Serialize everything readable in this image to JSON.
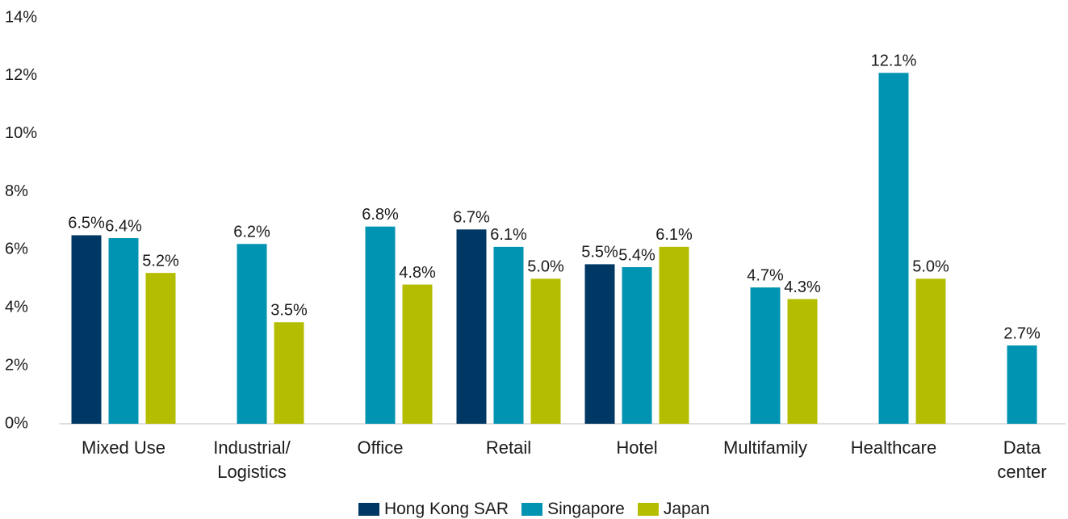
{
  "chart_data": {
    "type": "bar",
    "categories": [
      "Mixed Use",
      "Industrial/\nLogistics",
      "Office",
      "Retail",
      "Hotel",
      "Multifamily",
      "Healthcare",
      "Data\ncenter"
    ],
    "series": [
      {
        "name": "Hong Kong SAR",
        "color": "#003865",
        "values": [
          6.5,
          null,
          null,
          6.7,
          5.5,
          null,
          null,
          null
        ],
        "value_labels": [
          "6.5%",
          null,
          null,
          "6.7%",
          "5.5%",
          null,
          null,
          null
        ]
      },
      {
        "name": "Singapore",
        "color": "#0093b2",
        "values": [
          6.4,
          6.2,
          6.8,
          6.1,
          5.4,
          4.7,
          12.1,
          2.7
        ],
        "value_labels": [
          "6.4%",
          "6.2%",
          "6.8%",
          "6.1%",
          "5.4%",
          "4.7%",
          "12.1%",
          "2.7%"
        ]
      },
      {
        "name": "Japan",
        "color": "#b5bd00",
        "values": [
          5.2,
          3.5,
          4.8,
          5.0,
          6.1,
          4.3,
          5.0,
          null
        ],
        "value_labels": [
          "5.2%",
          "3.5%",
          "4.8%",
          "5.0%",
          "6.1%",
          "4.3%",
          "5.0%",
          null
        ]
      }
    ],
    "ylim": [
      0,
      14
    ],
    "yticks": [
      {
        "value": 0,
        "label": "0%"
      },
      {
        "value": 2,
        "label": "2%"
      },
      {
        "value": 4,
        "label": "4%"
      },
      {
        "value": 6,
        "label": "6%"
      },
      {
        "value": 8,
        "label": "8%"
      },
      {
        "value": 10,
        "label": "10%"
      },
      {
        "value": 12,
        "label": "12%"
      },
      {
        "value": 14,
        "label": "14%"
      }
    ],
    "grid": false,
    "legend": "bottom"
  }
}
